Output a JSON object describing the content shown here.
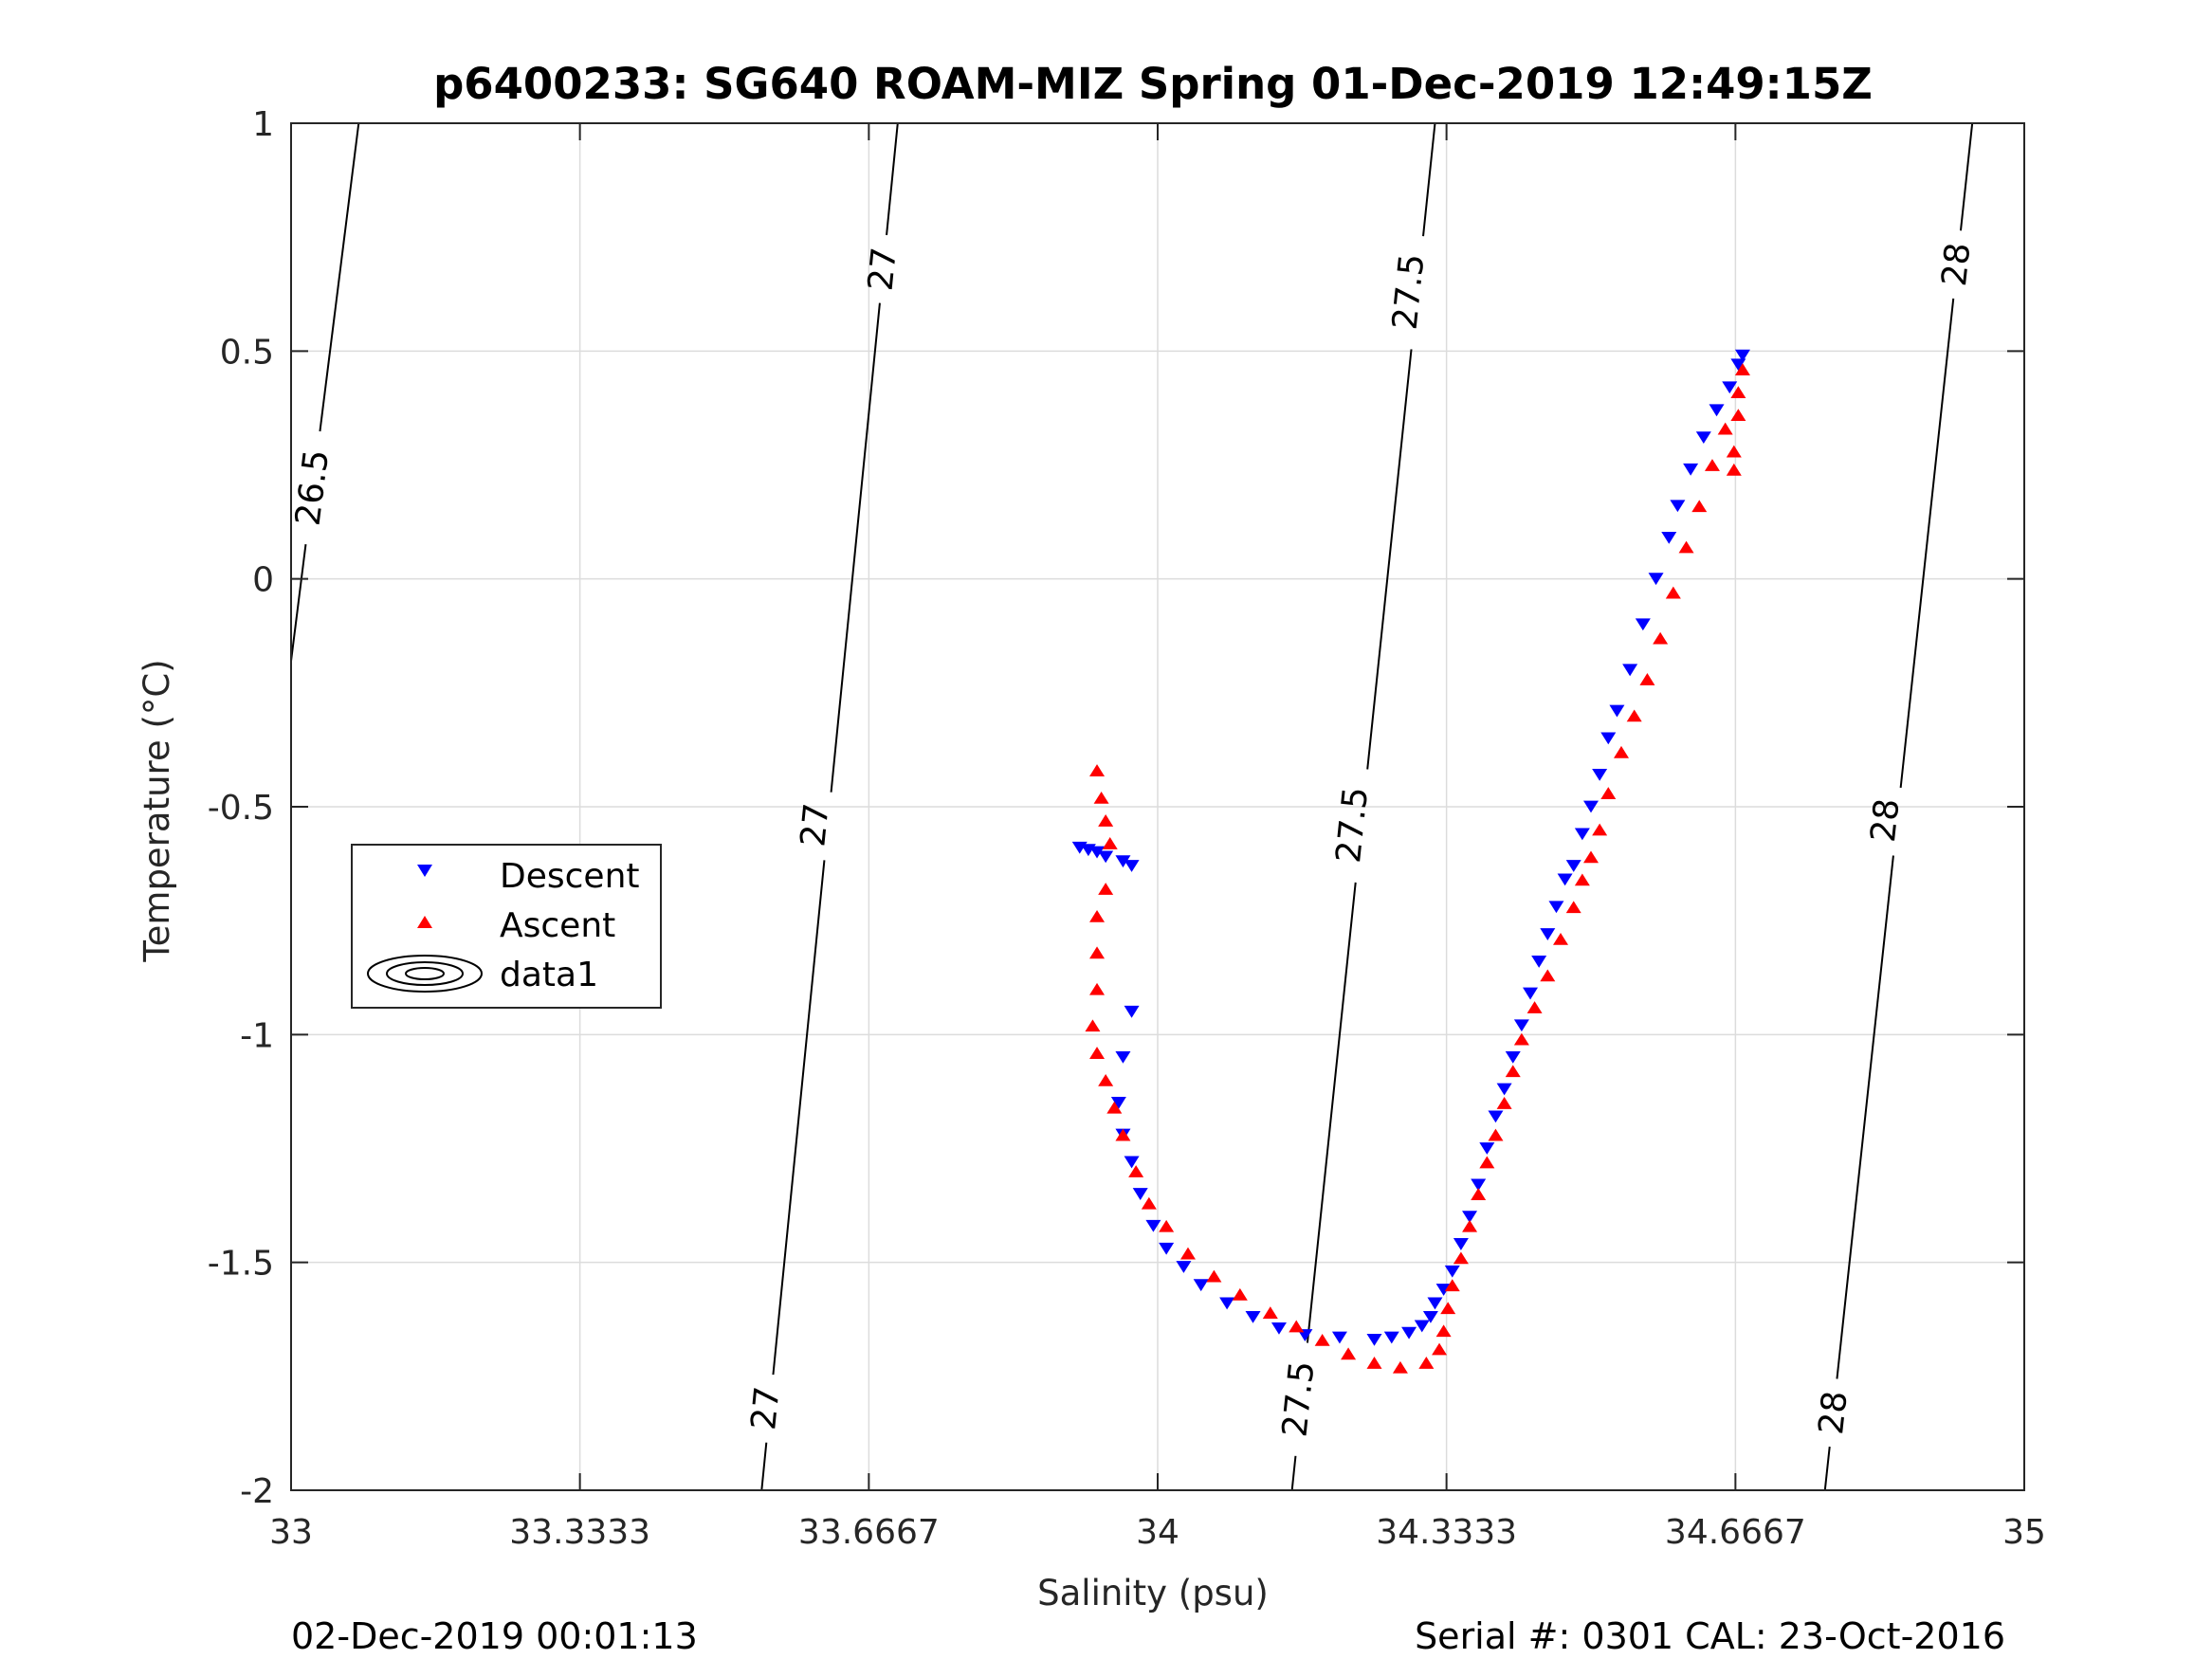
{
  "chart_data": {
    "type": "scatter",
    "title": "p6400233: SG640 ROAM-MIZ Spring 01-Dec-2019 12:49:15Z",
    "xlabel": "Salinity (psu)",
    "ylabel": "Temperature (°C)",
    "xlim": [
      33,
      35
    ],
    "ylim": [
      -2,
      1
    ],
    "xticks": [
      "33",
      "33.3333",
      "33.6667",
      "34",
      "34.3333",
      "34.6667",
      "35"
    ],
    "yticks": [
      "-2",
      "-1.5",
      "-1",
      "-0.5",
      "0",
      "0.5",
      "1"
    ],
    "grid": true,
    "legend": {
      "placement": "left-middle",
      "entries": [
        "Descent",
        "Ascent",
        "data1"
      ]
    },
    "colors": {
      "descent": "#0000ff",
      "ascent": "#ff0000",
      "contour": "#000000",
      "grid": "#dcdcdc"
    },
    "density_contours": [
      {
        "level": "26.5",
        "line": [
          [
            33,
            -0.18
          ],
          [
            33.078,
            1
          ]
        ],
        "labels": [
          {
            "s": 33.025,
            "t": 0.2
          }
        ]
      },
      {
        "level": "27",
        "line": [
          [
            33.543,
            -2
          ],
          [
            33.7,
            1
          ]
        ],
        "labels": [
          {
            "s": 33.548,
            "t": -1.82
          },
          {
            "s": 33.605,
            "t": -0.54
          },
          {
            "s": 33.683,
            "t": 0.68
          }
        ]
      },
      {
        "level": "27.5",
        "line": [
          [
            34.155,
            -2
          ],
          [
            34.32,
            1
          ]
        ],
        "labels": [
          {
            "s": 34.163,
            "t": -1.8
          },
          {
            "s": 34.225,
            "t": -0.54
          },
          {
            "s": 34.29,
            "t": 0.63
          }
        ]
      },
      {
        "level": "28",
        "line": [
          [
            34.77,
            -2
          ],
          [
            34.94,
            1
          ]
        ],
        "labels": [
          {
            "s": 34.78,
            "t": -1.83
          },
          {
            "s": 34.84,
            "t": -0.53
          },
          {
            "s": 34.922,
            "t": 0.69
          }
        ]
      }
    ],
    "series": [
      {
        "name": "Descent",
        "marker": "triangle-down",
        "color": "#0000ff",
        "points": [
          [
            33.91,
            -0.59
          ],
          [
            33.92,
            -0.595
          ],
          [
            33.93,
            -0.6
          ],
          [
            33.94,
            -0.61
          ],
          [
            33.96,
            -0.62
          ],
          [
            33.97,
            -0.63
          ],
          [
            33.97,
            -0.95
          ],
          [
            33.96,
            -1.05
          ],
          [
            33.955,
            -1.15
          ],
          [
            33.96,
            -1.22
          ],
          [
            33.97,
            -1.28
          ],
          [
            33.98,
            -1.35
          ],
          [
            33.995,
            -1.42
          ],
          [
            34.01,
            -1.47
          ],
          [
            34.03,
            -1.51
          ],
          [
            34.05,
            -1.55
          ],
          [
            34.08,
            -1.59
          ],
          [
            34.11,
            -1.62
          ],
          [
            34.14,
            -1.645
          ],
          [
            34.17,
            -1.66
          ],
          [
            34.21,
            -1.665
          ],
          [
            34.25,
            -1.67
          ],
          [
            34.27,
            -1.665
          ],
          [
            34.29,
            -1.655
          ],
          [
            34.305,
            -1.64
          ],
          [
            34.315,
            -1.62
          ],
          [
            34.32,
            -1.59
          ],
          [
            34.33,
            -1.56
          ],
          [
            34.34,
            -1.52
          ],
          [
            34.35,
            -1.46
          ],
          [
            34.36,
            -1.4
          ],
          [
            34.37,
            -1.33
          ],
          [
            34.38,
            -1.25
          ],
          [
            34.39,
            -1.18
          ],
          [
            34.4,
            -1.12
          ],
          [
            34.41,
            -1.05
          ],
          [
            34.42,
            -0.98
          ],
          [
            34.43,
            -0.91
          ],
          [
            34.44,
            -0.84
          ],
          [
            34.45,
            -0.78
          ],
          [
            34.46,
            -0.72
          ],
          [
            34.47,
            -0.66
          ],
          [
            34.48,
            -0.63
          ],
          [
            34.49,
            -0.56
          ],
          [
            34.5,
            -0.5
          ],
          [
            34.51,
            -0.43
          ],
          [
            34.52,
            -0.35
          ],
          [
            34.53,
            -0.29
          ],
          [
            34.545,
            -0.2
          ],
          [
            34.56,
            -0.1
          ],
          [
            34.575,
            0.0
          ],
          [
            34.59,
            0.09
          ],
          [
            34.6,
            0.16
          ],
          [
            34.615,
            0.24
          ],
          [
            34.63,
            0.31
          ],
          [
            34.645,
            0.37
          ],
          [
            34.66,
            0.42
          ],
          [
            34.67,
            0.47
          ],
          [
            34.675,
            0.49
          ]
        ]
      },
      {
        "name": "Ascent",
        "marker": "triangle-up",
        "color": "#ff0000",
        "points": [
          [
            33.93,
            -0.42
          ],
          [
            33.935,
            -0.48
          ],
          [
            33.94,
            -0.53
          ],
          [
            33.945,
            -0.58
          ],
          [
            33.94,
            -0.68
          ],
          [
            33.93,
            -0.74
          ],
          [
            33.93,
            -0.82
          ],
          [
            33.93,
            -0.9
          ],
          [
            33.925,
            -0.98
          ],
          [
            33.93,
            -1.04
          ],
          [
            33.94,
            -1.1
          ],
          [
            33.95,
            -1.16
          ],
          [
            33.96,
            -1.22
          ],
          [
            33.975,
            -1.3
          ],
          [
            33.99,
            -1.37
          ],
          [
            34.01,
            -1.42
          ],
          [
            34.035,
            -1.48
          ],
          [
            34.065,
            -1.53
          ],
          [
            34.095,
            -1.57
          ],
          [
            34.13,
            -1.61
          ],
          [
            34.16,
            -1.64
          ],
          [
            34.19,
            -1.67
          ],
          [
            34.22,
            -1.7
          ],
          [
            34.25,
            -1.72
          ],
          [
            34.28,
            -1.73
          ],
          [
            34.31,
            -1.72
          ],
          [
            34.325,
            -1.69
          ],
          [
            34.33,
            -1.65
          ],
          [
            34.335,
            -1.6
          ],
          [
            34.34,
            -1.55
          ],
          [
            34.35,
            -1.49
          ],
          [
            34.36,
            -1.42
          ],
          [
            34.37,
            -1.35
          ],
          [
            34.38,
            -1.28
          ],
          [
            34.39,
            -1.22
          ],
          [
            34.4,
            -1.15
          ],
          [
            34.41,
            -1.08
          ],
          [
            34.42,
            -1.01
          ],
          [
            34.435,
            -0.94
          ],
          [
            34.45,
            -0.87
          ],
          [
            34.465,
            -0.79
          ],
          [
            34.48,
            -0.72
          ],
          [
            34.49,
            -0.66
          ],
          [
            34.5,
            -0.61
          ],
          [
            34.51,
            -0.55
          ],
          [
            34.52,
            -0.47
          ],
          [
            34.535,
            -0.38
          ],
          [
            34.55,
            -0.3
          ],
          [
            34.565,
            -0.22
          ],
          [
            34.58,
            -0.13
          ],
          [
            34.595,
            -0.03
          ],
          [
            34.61,
            0.07
          ],
          [
            34.625,
            0.16
          ],
          [
            34.64,
            0.25
          ],
          [
            34.655,
            0.33
          ],
          [
            34.67,
            0.41
          ],
          [
            34.675,
            0.46
          ],
          [
            34.67,
            0.36
          ],
          [
            34.665,
            0.28
          ],
          [
            34.665,
            0.24
          ]
        ]
      }
    ]
  },
  "footer": {
    "timestamp": "02-Dec-2019 00:01:13",
    "serial": "Serial #: 0301  CAL: 23-Oct-2016"
  }
}
